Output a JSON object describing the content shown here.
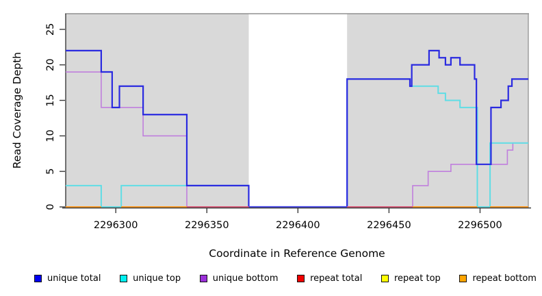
{
  "chart_data": {
    "type": "line",
    "subtype": "step-coverage-plot",
    "title": "",
    "xlabel": "Coordinate in Reference Genome",
    "ylabel": "Read Coverage Depth",
    "xlim": [
      2296272.5,
      2296526.5
    ],
    "ylim": [
      0,
      27.2
    ],
    "xticks": [
      2296300,
      2296350,
      2296400,
      2296450,
      2296500
    ],
    "yticks": [
      0,
      5,
      10,
      15,
      20,
      25
    ],
    "grid": false,
    "legend_position": "bottom",
    "shaded_regions": [
      {
        "x0": 2296272.5,
        "x1": 2296373,
        "color": "#d9d9d9",
        "border": "#999999"
      },
      {
        "x0": 2296427,
        "x1": 2296526.5,
        "color": "#d9d9d9",
        "border": "#999999"
      }
    ],
    "series": [
      {
        "name": "unique total",
        "color": "#2a2ae0",
        "width": 2.2,
        "steps": [
          [
            2296272.5,
            22
          ],
          [
            2296292,
            19
          ],
          [
            2296298,
            14
          ],
          [
            2296302,
            17
          ],
          [
            2296315,
            13
          ],
          [
            2296339,
            3
          ],
          [
            2296373,
            0
          ],
          [
            2296427,
            18
          ],
          [
            2296461.5,
            17
          ],
          [
            2296462.5,
            20
          ],
          [
            2296472,
            22
          ],
          [
            2296477.5,
            21
          ],
          [
            2296481,
            20
          ],
          [
            2296484,
            21
          ],
          [
            2296489,
            20
          ],
          [
            2296497,
            18
          ],
          [
            2296498,
            6
          ],
          [
            2296506,
            14
          ],
          [
            2296511.5,
            15
          ],
          [
            2296515.5,
            17
          ],
          [
            2296517.5,
            18
          ]
        ]
      },
      {
        "name": "unique top",
        "color": "#5fdde5",
        "width": 2,
        "steps": [
          [
            2296272.5,
            3
          ],
          [
            2296292,
            0
          ],
          [
            2296303,
            3
          ],
          [
            2296373,
            0
          ],
          [
            2296427,
            18
          ],
          [
            2296461.5,
            17
          ],
          [
            2296477,
            16
          ],
          [
            2296481,
            15
          ],
          [
            2296489,
            14
          ],
          [
            2296498.5,
            0
          ],
          [
            2296505.5,
            9
          ]
        ]
      },
      {
        "name": "unique bottom",
        "color": "#c07fdd",
        "width": 1.6,
        "steps": [
          [
            2296272.5,
            19
          ],
          [
            2296292,
            14
          ],
          [
            2296315,
            10
          ],
          [
            2296339,
            0
          ],
          [
            2296463,
            3
          ],
          [
            2296471.5,
            5
          ],
          [
            2296484,
            6
          ],
          [
            2296515,
            8
          ],
          [
            2296518,
            9
          ]
        ]
      },
      {
        "name": "repeat total",
        "color": "#e02020",
        "width": 1.8,
        "steps": [
          [
            2296272.5,
            0
          ]
        ]
      },
      {
        "name": "repeat top",
        "color": "#f2f200",
        "width": 1.8,
        "steps": [
          [
            2296272.5,
            0
          ]
        ]
      },
      {
        "name": "repeat bottom",
        "color": "#ff9a1e",
        "width": 2,
        "steps": [
          [
            2296272.5,
            0
          ]
        ]
      }
    ],
    "zero_line_overlay": [
      {
        "x0": 2296272.5,
        "x1": 2296292,
        "color": "#ff9a1e"
      },
      {
        "x0": 2296292,
        "x1": 2296303,
        "color": "#5fdde5"
      },
      {
        "x0": 2296303,
        "x1": 2296339,
        "color": "#ff9a1e"
      },
      {
        "x0": 2296339,
        "x1": 2296373,
        "color": "#dc5878"
      },
      {
        "x0": 2296373,
        "x1": 2296427,
        "color": "#4646e8"
      },
      {
        "x0": 2296427,
        "x1": 2296463,
        "color": "#dc5878"
      },
      {
        "x0": 2296463,
        "x1": 2296498.5,
        "color": "#ff9a1e"
      },
      {
        "x0": 2296498.5,
        "x1": 2296505.5,
        "color": "#5fdde5"
      },
      {
        "x0": 2296505.5,
        "x1": 2296526.5,
        "color": "#ff9a1e"
      }
    ],
    "legend": [
      {
        "label": "unique total",
        "color": "#0000f0"
      },
      {
        "label": "unique top",
        "color": "#00f0f0"
      },
      {
        "label": "unique bottom",
        "color": "#9b30d9"
      },
      {
        "label": "repeat total",
        "color": "#f00000"
      },
      {
        "label": "repeat top",
        "color": "#ffff00"
      },
      {
        "label": "repeat bottom",
        "color": "#ffa500"
      }
    ]
  }
}
